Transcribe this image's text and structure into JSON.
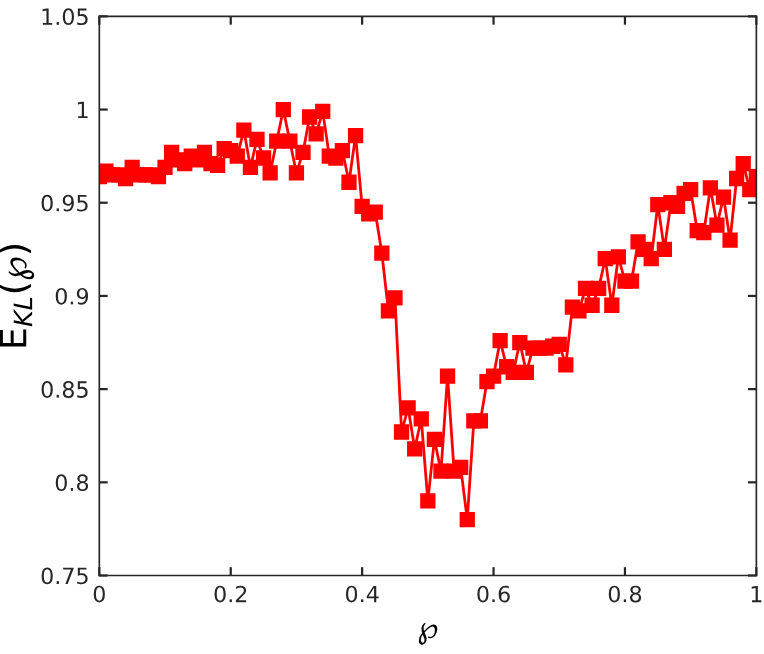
{
  "chart_data": {
    "type": "line",
    "xlabel": "℘",
    "ylabel": "E$_{KL}$(℘)",
    "x": [
      0,
      0.01,
      0.02,
      0.03,
      0.04,
      0.05,
      0.06,
      0.07,
      0.08,
      0.09,
      0.1,
      0.11,
      0.12,
      0.13,
      0.14,
      0.15,
      0.16,
      0.17,
      0.18,
      0.19,
      0.2,
      0.21,
      0.22,
      0.23,
      0.24,
      0.25,
      0.26,
      0.27,
      0.28,
      0.29,
      0.3,
      0.31,
      0.32,
      0.33,
      0.34,
      0.35,
      0.36,
      0.37,
      0.38,
      0.39,
      0.4,
      0.41,
      0.42,
      0.43,
      0.44,
      0.45,
      0.46,
      0.47,
      0.48,
      0.49,
      0.5,
      0.51,
      0.52,
      0.53,
      0.54,
      0.55,
      0.56,
      0.57,
      0.58,
      0.59,
      0.6,
      0.61,
      0.62,
      0.63,
      0.64,
      0.65,
      0.66,
      0.67,
      0.68,
      0.69,
      0.7,
      0.71,
      0.72,
      0.73,
      0.74,
      0.75,
      0.76,
      0.77,
      0.78,
      0.79,
      0.8,
      0.81,
      0.82,
      0.83,
      0.84,
      0.85,
      0.86,
      0.87,
      0.88,
      0.89,
      0.9,
      0.91,
      0.92,
      0.93,
      0.94,
      0.95,
      0.96,
      0.97,
      0.98,
      0.99,
      1
    ],
    "series": [
      {
        "color": "#ff0000",
        "values": [
          0.964,
          0.967,
          0.965,
          0.965,
          0.963,
          0.969,
          0.965,
          0.965,
          0.965,
          0.964,
          0.969,
          0.977,
          0.973,
          0.971,
          0.975,
          0.973,
          0.977,
          0.971,
          0.97,
          0.979,
          0.978,
          0.975,
          0.989,
          0.969,
          0.984,
          0.974,
          0.966,
          0.983,
          1.0,
          0.983,
          0.966,
          0.977,
          0.996,
          0.987,
          0.999,
          0.975,
          0.974,
          0.978,
          0.961,
          0.986,
          0.948,
          0.944,
          0.945,
          0.923,
          0.892,
          0.899,
          0.827,
          0.84,
          0.818,
          0.834,
          0.79,
          0.823,
          0.806,
          0.857,
          0.806,
          0.808,
          0.78,
          0.833,
          0.833,
          0.854,
          0.857,
          0.876,
          0.862,
          0.859,
          0.875,
          0.859,
          0.872,
          0.872,
          0.872,
          0.873,
          0.874,
          0.863,
          0.894,
          0.892,
          0.904,
          0.895,
          0.904,
          0.92,
          0.895,
          0.921,
          0.908,
          0.908,
          0.929,
          0.925,
          0.92,
          0.949,
          0.925,
          0.95,
          0.948,
          0.955,
          0.957,
          0.935,
          0.934,
          0.958,
          0.938,
          0.953,
          0.93,
          0.963,
          0.971,
          0.957,
          0.964
        ]
      }
    ],
    "xlim": [
      0,
      1
    ],
    "xticks": [
      0,
      0.2,
      0.4,
      0.6,
      0.8,
      1
    ],
    "ylim": [
      0.75,
      1.05
    ],
    "yticks": [
      0.75,
      0.8,
      0.85,
      0.9,
      0.95,
      1,
      1.05
    ],
    "marker": "square",
    "line_style": "solid",
    "grid": false,
    "legend": false
  }
}
